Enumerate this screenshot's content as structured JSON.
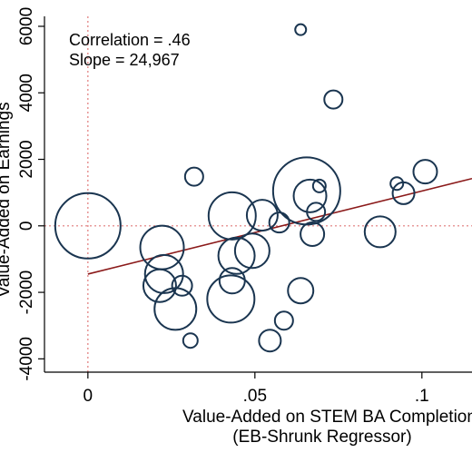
{
  "chart_data": {
    "type": "scatter",
    "xlabel_line1": "Value-Added on STEM BA Completion",
    "xlabel_line2": "(EB-Shrunk Regressor)",
    "ylabel": "Value-Added on Earnings",
    "xlim": [
      -0.013,
      0.115
    ],
    "ylim": [
      -4400,
      6300
    ],
    "x_ticks": [
      0,
      0.05,
      0.1
    ],
    "x_tick_labels": [
      "0",
      ".05",
      ".1"
    ],
    "y_ticks": [
      -4000,
      -2000,
      0,
      2000,
      4000,
      6000
    ],
    "y_tick_labels": [
      "-4000",
      "-2000",
      "0",
      "2000",
      "4000",
      "6000"
    ],
    "reference_lines": {
      "x": 0,
      "y": 0,
      "color": "#e07a7a"
    },
    "fit_line": {
      "intercept": -1450,
      "slope": 24967,
      "color": "#8b1a1a"
    },
    "annotations": [
      "Correlation = .46",
      "Slope = 24,967"
    ],
    "marker_color": "#1a3550",
    "points": [
      {
        "x": 0.0,
        "y": 0,
        "r": 36
      },
      {
        "x": 0.0637,
        "y": 5900,
        "r": 6
      },
      {
        "x": 0.0735,
        "y": 3800,
        "r": 10
      },
      {
        "x": 0.0318,
        "y": 1480,
        "r": 10
      },
      {
        "x": 0.0655,
        "y": 1050,
        "r": 37
      },
      {
        "x": 0.0665,
        "y": 900,
        "r": 18
      },
      {
        "x": 0.0693,
        "y": 1200,
        "r": 7
      },
      {
        "x": 0.0683,
        "y": 420,
        "r": 10
      },
      {
        "x": 0.101,
        "y": 1630,
        "r": 13
      },
      {
        "x": 0.0925,
        "y": 1270,
        "r": 7
      },
      {
        "x": 0.0945,
        "y": 980,
        "r": 12
      },
      {
        "x": 0.0875,
        "y": -180,
        "r": 17
      },
      {
        "x": 0.0672,
        "y": -250,
        "r": 13
      },
      {
        "x": 0.0573,
        "y": 100,
        "r": 11
      },
      {
        "x": 0.0522,
        "y": 320,
        "r": 17
      },
      {
        "x": 0.0432,
        "y": 300,
        "r": 26
      },
      {
        "x": 0.0445,
        "y": -900,
        "r": 20
      },
      {
        "x": 0.0492,
        "y": -750,
        "r": 19
      },
      {
        "x": 0.0432,
        "y": -1650,
        "r": 14
      },
      {
        "x": 0.0428,
        "y": -2200,
        "r": 26
      },
      {
        "x": 0.0637,
        "y": -1950,
        "r": 14
      },
      {
        "x": 0.0587,
        "y": -2850,
        "r": 10
      },
      {
        "x": 0.0545,
        "y": -3450,
        "r": 12
      },
      {
        "x": 0.0307,
        "y": -3450,
        "r": 8
      },
      {
        "x": 0.0222,
        "y": -650,
        "r": 24
      },
      {
        "x": 0.0228,
        "y": -1450,
        "r": 21
      },
      {
        "x": 0.0215,
        "y": -1800,
        "r": 18
      },
      {
        "x": 0.0282,
        "y": -1800,
        "r": 11
      },
      {
        "x": 0.0262,
        "y": -2500,
        "r": 23
      }
    ]
  }
}
